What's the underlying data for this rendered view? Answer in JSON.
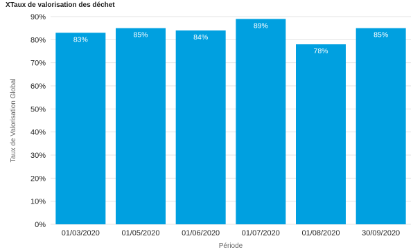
{
  "chart_data": {
    "type": "bar",
    "title": "XTaux de valorisation des déchet",
    "xlabel": "Période",
    "ylabel": "Taux de Valorisation Global",
    "categories": [
      "01/03/2020",
      "01/05/2020",
      "01/06/2020",
      "01/07/2020",
      "01/08/2020",
      "30/09/2020"
    ],
    "values": [
      83,
      85,
      84,
      89,
      78,
      85
    ],
    "data_labels": [
      "83%",
      "85%",
      "84%",
      "89%",
      "78%",
      "85%"
    ],
    "y_ticks": [
      "0%",
      "10%",
      "20%",
      "30%",
      "40%",
      "50%",
      "60%",
      "70%",
      "80%",
      "90%"
    ],
    "ylim": [
      0,
      90
    ],
    "grid": true,
    "legend": false,
    "colors": {
      "bar": "#00A0E0"
    }
  }
}
